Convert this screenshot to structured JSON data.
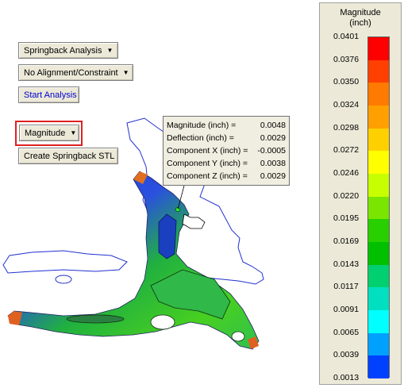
{
  "toolbar": {
    "springback_analysis": "Springback Analysis",
    "alignment": "No Alignment/Constraint",
    "start_analysis": "Start Analysis",
    "magnitude": "Magnitude",
    "create_stl": "Create Springback STL"
  },
  "tooltip": {
    "rows": [
      {
        "label": "Magnitude (inch) =",
        "value": "0.0048"
      },
      {
        "label": "Deflection (inch) =",
        "value": "0.0029"
      },
      {
        "label": "Component X (inch) =",
        "value": "-0.0005"
      },
      {
        "label": "Component Y (inch) =",
        "value": "0.0038"
      },
      {
        "label": "Component Z (inch) =",
        "value": "0.0029"
      }
    ]
  },
  "legend": {
    "title_line1": "Magnitude",
    "title_line2": "(inch)",
    "labels": [
      "0.0401",
      "0.0376",
      "0.0350",
      "0.0324",
      "0.0298",
      "0.0272",
      "0.0246",
      "0.0220",
      "0.0195",
      "0.0169",
      "0.0143",
      "0.0117",
      "0.0091",
      "0.0065",
      "0.0039",
      "0.0013"
    ],
    "colors": [
      "#ff0000",
      "#ff4000",
      "#ff7a00",
      "#ffa000",
      "#ffd000",
      "#ffff00",
      "#c8ff00",
      "#7ae600",
      "#28d000",
      "#00c000",
      "#00d070",
      "#00e0c0",
      "#00ffff",
      "#00a0ff",
      "#0040ff"
    ]
  }
}
